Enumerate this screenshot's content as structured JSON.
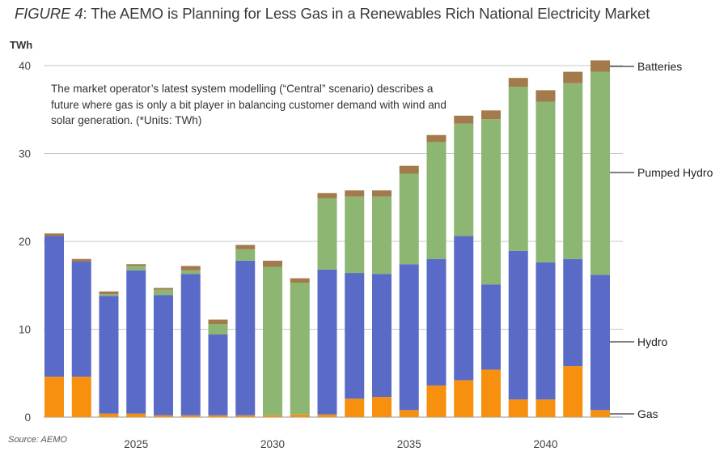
{
  "title": {
    "figure_label": "FIGURE 4",
    "text": ": The AEMO is Planning for Less Gas in a Renewables Rich National Electricity Market"
  },
  "annotation": "The market operator’s latest system modelling (“Central” scenario) describes a future where gas is only a bit player in balancing customer demand with wind and solar generation. (*Units: TWh)",
  "source": "Source: AEMO",
  "colors": {
    "Gas": "#f7900f",
    "Hydro": "#5a6bc7",
    "Pumped Hydro": "#8db673",
    "Batteries": "#a37a4c",
    "grid": "#c8c8c8",
    "axis": "#b8b8b8"
  },
  "chart_data": {
    "type": "bar",
    "stacked": true,
    "title": "FIGURE 4: The AEMO is Planning for Less Gas in a Renewables Rich National Electricity Market",
    "xlabel": "",
    "ylabel": "TWh",
    "ylim": [
      0,
      40
    ],
    "yticks": [
      0,
      10,
      20,
      30,
      40
    ],
    "grid": true,
    "legend": "right (labels beside last bar)",
    "categories": [
      "2022",
      "2023",
      "2024",
      "2025",
      "2026",
      "2027",
      "2028",
      "2029",
      "2030",
      "2031",
      "2032",
      "2033",
      "2034",
      "2035",
      "2036",
      "2037",
      "2038",
      "2039",
      "2040",
      "2041",
      "2042"
    ],
    "xtick_labels": [
      "2025",
      "2030",
      "2035",
      "2040"
    ],
    "series": [
      {
        "name": "Gas",
        "values": [
          4.6,
          4.6,
          0.4,
          0.4,
          0.2,
          0.2,
          0.2,
          0.2,
          0.2,
          0.3,
          0.3,
          2.1,
          2.3,
          0.8,
          3.6,
          4.2,
          5.4,
          2.0,
          2.0,
          5.8,
          0.8
        ]
      },
      {
        "name": "Hydro",
        "values": [
          16.0,
          13.1,
          13.4,
          16.3,
          13.7,
          16.1,
          9.2,
          17.6,
          0.0,
          0.0,
          16.5,
          14.3,
          14.0,
          16.6,
          14.4,
          16.4,
          9.7,
          16.9,
          15.6,
          12.2,
          15.4
        ]
      },
      {
        "name": "Pumped Hydro",
        "values": [
          0.0,
          0.0,
          0.2,
          0.5,
          0.6,
          0.4,
          1.2,
          1.3,
          16.9,
          15.0,
          8.1,
          8.7,
          8.8,
          10.3,
          13.3,
          12.8,
          18.8,
          18.7,
          18.3,
          20.0,
          23.1
        ]
      },
      {
        "name": "Batteries",
        "values": [
          0.3,
          0.3,
          0.3,
          0.2,
          0.2,
          0.5,
          0.5,
          0.5,
          0.7,
          0.5,
          0.6,
          0.7,
          0.7,
          0.9,
          0.8,
          0.9,
          1.0,
          1.0,
          1.3,
          1.3,
          1.3
        ]
      }
    ]
  }
}
